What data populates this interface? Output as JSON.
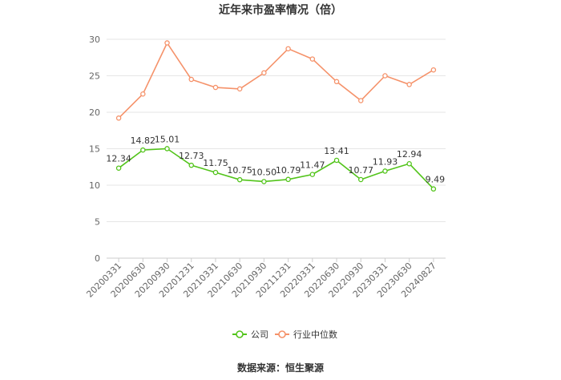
{
  "title": "近年来市盈率情况（倍）",
  "source": "数据来源：恒生聚源",
  "chart_data": {
    "type": "line",
    "title": "近年来市盈率情况（倍）",
    "xlabel": "",
    "ylabel": "",
    "ylim": [
      0,
      30
    ],
    "yticks": [
      "0",
      "5",
      "10",
      "15",
      "20",
      "25",
      "30"
    ],
    "grid": true,
    "legend_position": "bottom",
    "categories": [
      "20200331",
      "20200630",
      "20200930",
      "20201231",
      "20210331",
      "20210630",
      "20210930",
      "20211231",
      "20220331",
      "20220630",
      "20220930",
      "20230331",
      "20230630",
      "20240827"
    ],
    "series": [
      {
        "name": "公司",
        "color": "#52c41a",
        "values": [
          12.34,
          14.82,
          15.01,
          12.73,
          11.75,
          10.75,
          10.5,
          10.79,
          11.47,
          13.41,
          10.77,
          11.93,
          12.94,
          9.49
        ],
        "labels": [
          "12.34",
          "14.82",
          "15.01",
          "12.73",
          "11.75",
          "10.75",
          "10.50",
          "10.79",
          "11.47",
          "13.41",
          "10.77",
          "11.93",
          "12.94",
          "9.49"
        ]
      },
      {
        "name": "行业中位数",
        "color": "#f5926a",
        "values": [
          19.2,
          22.5,
          29.5,
          24.5,
          23.4,
          23.2,
          25.4,
          28.7,
          27.3,
          24.2,
          21.6,
          25.0,
          23.8,
          25.8
        ]
      }
    ]
  }
}
